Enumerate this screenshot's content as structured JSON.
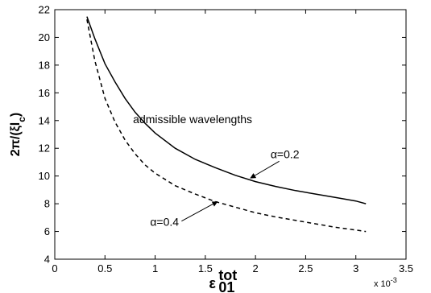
{
  "chart_data": {
    "type": "line",
    "xlim": [
      0,
      3.5
    ],
    "ylim": [
      4,
      22
    ],
    "x_ticks": [
      "0",
      "0.5",
      "1",
      "1.5",
      "2",
      "2.5",
      "3",
      "3.5"
    ],
    "y_ticks": [
      "4",
      "6",
      "8",
      "10",
      "12",
      "14",
      "16",
      "18",
      "20",
      "22"
    ],
    "x_multiplier": "x 10",
    "x_multiplier_exp": "-3",
    "xlabel": "ε",
    "xlabel_sup": "tot",
    "xlabel_sub": "01",
    "ylabel": "2π/(ξl",
    "ylabel_sub": "c",
    "ylabel_close": ")",
    "grid": false,
    "series": [
      {
        "name": "α=0.2",
        "style": "solid",
        "color": "#000000",
        "x": [
          0.32,
          0.4,
          0.5,
          0.6,
          0.7,
          0.8,
          0.9,
          1.0,
          1.2,
          1.4,
          1.6,
          1.8,
          2.0,
          2.2,
          2.4,
          2.6,
          2.8,
          3.0,
          3.1
        ],
        "y": [
          21.5,
          19.9,
          18.1,
          16.8,
          15.6,
          14.6,
          13.8,
          13.1,
          12.0,
          11.2,
          10.6,
          10.05,
          9.6,
          9.25,
          8.95,
          8.7,
          8.45,
          8.2,
          8.0
        ]
      },
      {
        "name": "α=0.4",
        "style": "dashed",
        "color": "#000000",
        "x": [
          0.32,
          0.4,
          0.5,
          0.6,
          0.7,
          0.8,
          0.9,
          1.0,
          1.2,
          1.4,
          1.6,
          1.8,
          2.0,
          2.2,
          2.4,
          2.6,
          2.8,
          3.0,
          3.1
        ],
        "y": [
          21.3,
          18.3,
          15.6,
          13.9,
          12.6,
          11.6,
          10.8,
          10.2,
          9.3,
          8.7,
          8.15,
          7.75,
          7.35,
          7.05,
          6.8,
          6.55,
          6.3,
          6.1,
          6.0
        ]
      }
    ],
    "annotations": [
      {
        "text": "admissible wavelengths",
        "x": 0.78,
        "y": 13.8
      },
      {
        "text": "α=0.2",
        "x": 2.15,
        "y": 11.3,
        "arrow_to": [
          1.95,
          9.85
        ]
      },
      {
        "text": "α=0.4",
        "x": 0.95,
        "y": 6.4,
        "arrow_to": [
          1.62,
          8.15
        ]
      }
    ]
  }
}
